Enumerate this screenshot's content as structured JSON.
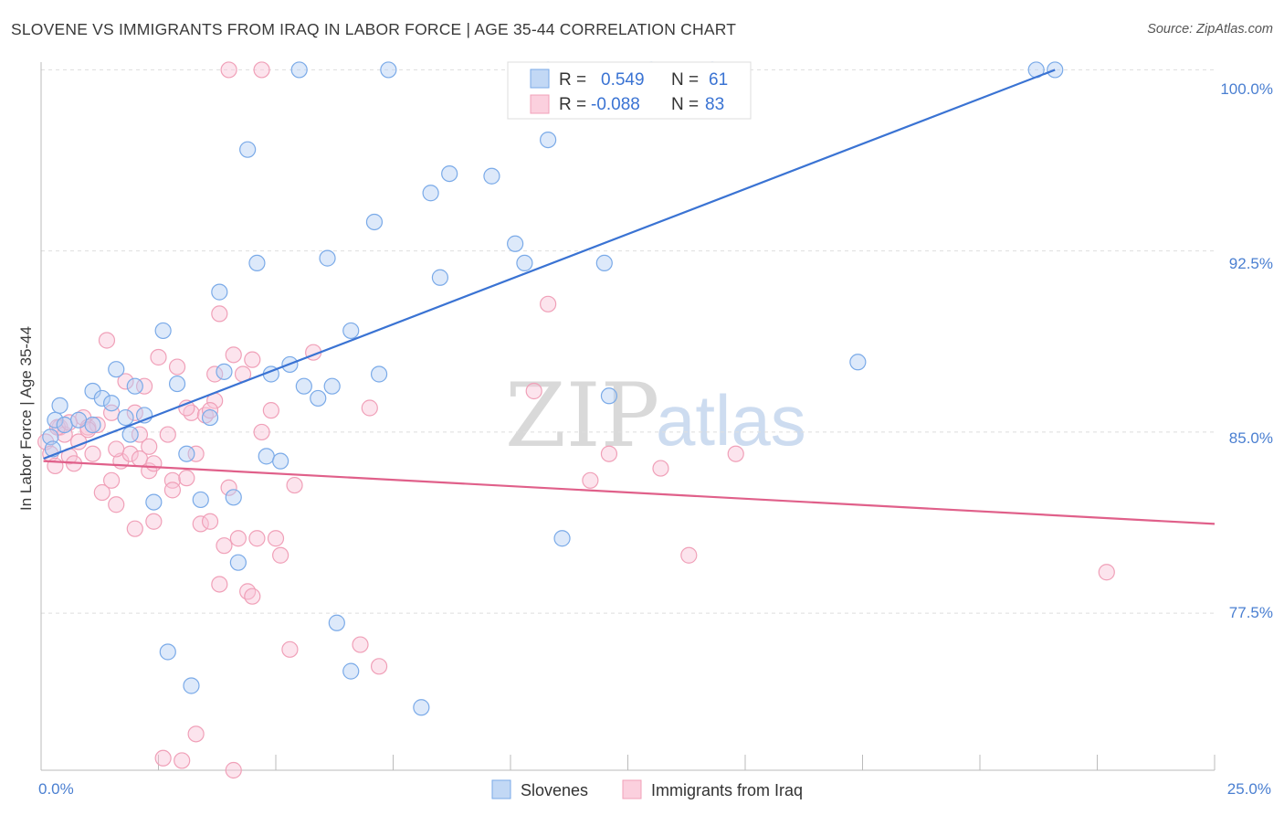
{
  "header": {
    "title": "SLOVENE VS IMMIGRANTS FROM IRAQ IN LABOR FORCE | AGE 35-44 CORRELATION CHART",
    "source": "Source: ZipAtlas.com"
  },
  "watermark": {
    "zip": "ZIP",
    "atlas": "atlas"
  },
  "legend": {
    "rows": [
      {
        "r_label": "R =",
        "r_value": "0.549",
        "n_label": "N =",
        "n_value": "61"
      },
      {
        "r_label": "R =",
        "r_value": "-0.088",
        "n_label": "N =",
        "n_value": "83"
      }
    ]
  },
  "bottom_legend": {
    "series1": "Slovenes",
    "series2": "Immigrants from Iraq"
  },
  "chart_data": {
    "type": "scatter",
    "ylabel": "In Labor Force | Age 35-44",
    "xlim": [
      0,
      25
    ],
    "ylim": [
      71.0,
      101.0
    ],
    "x_tick_labels": [
      "0.0%",
      "25.0%"
    ],
    "y_ticks": [
      77.5,
      85.0,
      92.5,
      100.0
    ],
    "y_tick_labels": [
      "77.5%",
      "85.0%",
      "92.5%",
      "100.0%"
    ],
    "grid": true,
    "colors": {
      "series1": "#7aaae8",
      "series2": "#f0a0b8",
      "trend1": "#3a73d3",
      "trend2": "#e0608a",
      "tick": "#4a7fd1"
    },
    "series": [
      {
        "name": "Slovenes",
        "trend": [
          [
            0.05,
            83.9
          ],
          [
            21.6,
            100.0
          ]
        ],
        "points": [
          [
            0.2,
            84.8
          ],
          [
            0.25,
            84.3
          ],
          [
            0.3,
            85.5
          ],
          [
            0.4,
            86.1
          ],
          [
            0.5,
            85.3
          ],
          [
            0.8,
            85.5
          ],
          [
            1.1,
            85.3
          ],
          [
            1.1,
            86.7
          ],
          [
            1.3,
            86.4
          ],
          [
            1.5,
            86.2
          ],
          [
            1.6,
            87.6
          ],
          [
            1.8,
            85.6
          ],
          [
            1.9,
            84.9
          ],
          [
            2.0,
            86.9
          ],
          [
            2.2,
            85.7
          ],
          [
            2.4,
            82.1
          ],
          [
            2.6,
            89.2
          ],
          [
            2.7,
            75.9
          ],
          [
            2.9,
            87.0
          ],
          [
            3.1,
            84.1
          ],
          [
            3.2,
            74.5
          ],
          [
            3.4,
            82.2
          ],
          [
            3.6,
            85.6
          ],
          [
            3.8,
            90.8
          ],
          [
            3.9,
            87.5
          ],
          [
            4.1,
            82.3
          ],
          [
            4.2,
            79.6
          ],
          [
            4.4,
            96.7
          ],
          [
            4.6,
            92.0
          ],
          [
            4.8,
            84.0
          ],
          [
            4.9,
            87.4
          ],
          [
            5.1,
            83.8
          ],
          [
            5.3,
            87.8
          ],
          [
            5.6,
            86.9
          ],
          [
            5.9,
            86.4
          ],
          [
            6.1,
            92.2
          ],
          [
            6.2,
            86.9
          ],
          [
            6.3,
            77.1
          ],
          [
            6.6,
            89.2
          ],
          [
            6.6,
            75.1
          ],
          [
            7.1,
            93.7
          ],
          [
            7.2,
            87.4
          ],
          [
            8.1,
            73.6
          ],
          [
            8.3,
            94.9
          ],
          [
            8.5,
            91.4
          ],
          [
            8.7,
            95.7
          ],
          [
            9.6,
            95.6
          ],
          [
            10.1,
            92.8
          ],
          [
            10.3,
            92.0
          ],
          [
            10.8,
            97.1
          ],
          [
            11.1,
            80.6
          ],
          [
            12.0,
            92.0
          ],
          [
            12.1,
            86.5
          ],
          [
            13.0,
            100.0
          ],
          [
            14.3,
            100.0
          ],
          [
            17.4,
            87.9
          ],
          [
            21.2,
            100.0
          ],
          [
            21.6,
            100.0
          ],
          [
            5.5,
            100.0
          ],
          [
            7.4,
            100.0
          ],
          [
            10.8,
            100.0
          ]
        ]
      },
      {
        "name": "Immigrants from Iraq",
        "trend": [
          [
            0.05,
            83.8
          ],
          [
            25.0,
            81.2
          ]
        ],
        "points": [
          [
            0.1,
            84.6
          ],
          [
            0.2,
            84.1
          ],
          [
            0.3,
            83.6
          ],
          [
            0.4,
            85.2
          ],
          [
            0.5,
            84.9
          ],
          [
            0.6,
            84.0
          ],
          [
            0.7,
            83.7
          ],
          [
            0.8,
            84.6
          ],
          [
            0.9,
            85.6
          ],
          [
            1.0,
            85.2
          ],
          [
            1.1,
            84.1
          ],
          [
            1.2,
            85.3
          ],
          [
            1.3,
            82.5
          ],
          [
            1.4,
            88.8
          ],
          [
            1.5,
            85.8
          ],
          [
            1.5,
            83.0
          ],
          [
            1.6,
            82.0
          ],
          [
            1.7,
            83.8
          ],
          [
            1.8,
            87.1
          ],
          [
            1.9,
            84.1
          ],
          [
            2.0,
            85.8
          ],
          [
            2.0,
            81.0
          ],
          [
            2.1,
            83.9
          ],
          [
            2.1,
            84.9
          ],
          [
            2.2,
            86.9
          ],
          [
            2.3,
            83.4
          ],
          [
            2.4,
            83.7
          ],
          [
            2.4,
            81.3
          ],
          [
            2.5,
            88.1
          ],
          [
            2.6,
            71.5
          ],
          [
            2.7,
            84.9
          ],
          [
            2.8,
            83.0
          ],
          [
            2.8,
            82.6
          ],
          [
            2.9,
            87.7
          ],
          [
            3.0,
            71.4
          ],
          [
            3.1,
            83.1
          ],
          [
            3.2,
            85.8
          ],
          [
            3.3,
            84.1
          ],
          [
            3.3,
            72.5
          ],
          [
            3.4,
            81.2
          ],
          [
            3.5,
            85.7
          ],
          [
            3.6,
            81.3
          ],
          [
            3.7,
            86.3
          ],
          [
            3.7,
            87.4
          ],
          [
            3.8,
            89.9
          ],
          [
            3.8,
            78.7
          ],
          [
            3.9,
            80.3
          ],
          [
            4.0,
            82.7
          ],
          [
            4.1,
            88.2
          ],
          [
            4.2,
            80.6
          ],
          [
            4.3,
            87.4
          ],
          [
            4.4,
            78.4
          ],
          [
            4.5,
            78.2
          ],
          [
            4.5,
            88.0
          ],
          [
            4.6,
            80.6
          ],
          [
            4.7,
            85.0
          ],
          [
            4.9,
            85.9
          ],
          [
            5.0,
            80.6
          ],
          [
            5.1,
            79.9
          ],
          [
            5.3,
            76.0
          ],
          [
            5.4,
            82.8
          ],
          [
            5.8,
            88.3
          ],
          [
            6.8,
            76.2
          ],
          [
            7.0,
            86.0
          ],
          [
            7.2,
            75.3
          ],
          [
            10.5,
            86.7
          ],
          [
            10.8,
            90.3
          ],
          [
            11.7,
            83.0
          ],
          [
            12.1,
            84.1
          ],
          [
            13.2,
            83.5
          ],
          [
            13.8,
            79.9
          ],
          [
            14.8,
            84.1
          ],
          [
            22.7,
            79.2
          ],
          [
            4.0,
            100.0
          ],
          [
            4.7,
            100.0
          ],
          [
            4.1,
            71.0
          ],
          [
            0.35,
            85.2
          ],
          [
            0.6,
            85.4
          ],
          [
            1.0,
            85.1
          ],
          [
            1.6,
            84.3
          ],
          [
            2.3,
            84.4
          ],
          [
            3.1,
            86.0
          ],
          [
            3.6,
            85.9
          ]
        ]
      }
    ]
  }
}
